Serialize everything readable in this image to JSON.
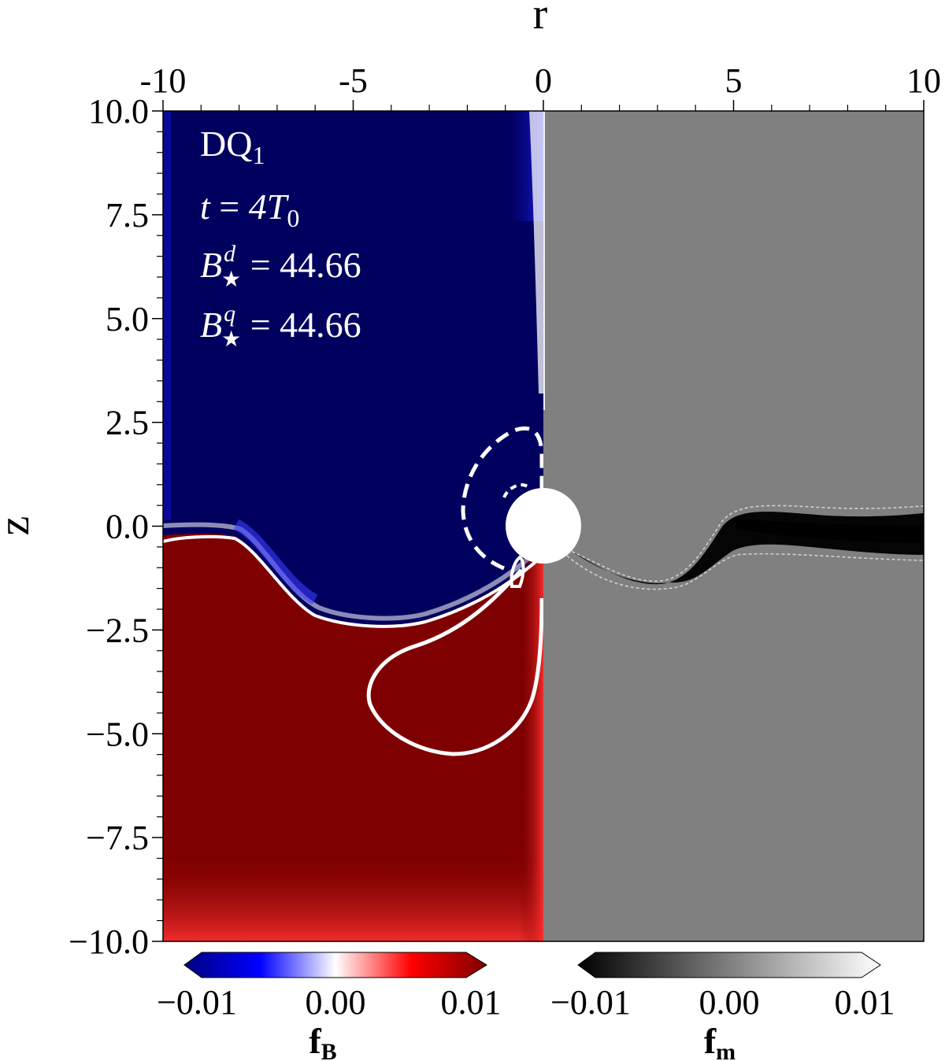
{
  "chart_data": {
    "type": "heatmap",
    "panel_label": "DQ",
    "panel_label_sub": "1",
    "annotations": {
      "time": {
        "var": "t",
        "eq": " = ",
        "value": "4T",
        "sub": "0"
      },
      "bd": {
        "var": "B",
        "sup": "d",
        "sub": "★",
        "eq": " = ",
        "value": "44.66"
      },
      "bq": {
        "var": "B",
        "sup": "q",
        "sub": "★",
        "eq": " = ",
        "value": "44.66"
      }
    },
    "x_axis": {
      "label": "r",
      "position": "top",
      "range": [
        -10,
        10
      ],
      "major_ticks": [
        -10,
        -5,
        0,
        5,
        10
      ],
      "tick_labels": [
        "-10",
        "-5",
        "0",
        "5",
        "10"
      ]
    },
    "y_axis": {
      "label": "z",
      "range": [
        -10.0,
        10.0
      ],
      "major_ticks": [
        10.0,
        7.5,
        5.0,
        2.5,
        0.0,
        -2.5,
        -5.0,
        -7.5,
        -10.0
      ],
      "tick_labels": [
        "10.0",
        "7.5",
        "5.0",
        "2.5",
        "0.0",
        "−2.5",
        "−5.0",
        "−7.5",
        "−10.0"
      ]
    },
    "colorbars": [
      {
        "title": "f",
        "title_sub": "B",
        "colormap": "seismic",
        "range": [
          -0.01,
          0.01
        ],
        "tick_labels": [
          "−0.01",
          "0.00",
          "0.01"
        ],
        "colors": [
          "#00007f",
          "#0000ff",
          "#ffffff",
          "#ff0000",
          "#7f0000"
        ]
      },
      {
        "title": "f",
        "title_sub": "m",
        "colormap": "gray",
        "range": [
          -0.01,
          0.01
        ],
        "tick_labels": [
          "−0.01",
          "0.00",
          "0.01"
        ],
        "colors": [
          "#000000",
          "#ffffff"
        ]
      }
    ],
    "regions": {
      "left_top_color": "#00005f",
      "left_bottom_color": "#7f0000",
      "right_background_color": "#808080"
    }
  }
}
